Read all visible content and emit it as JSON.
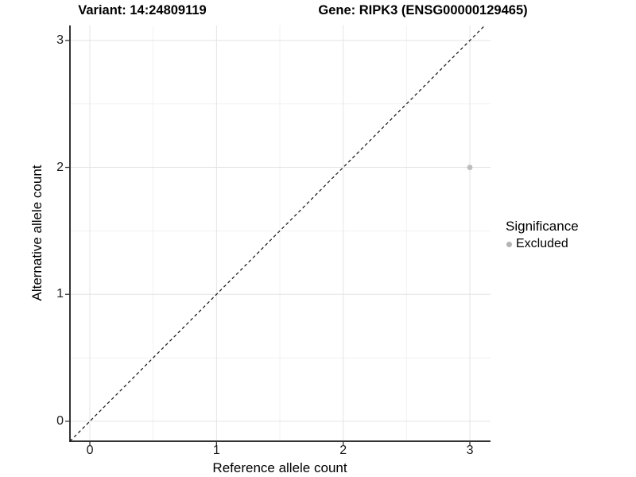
{
  "titles": {
    "variant": "Variant: 14:24809119",
    "gene": "Gene: RIPK3 (ENSG00000129465)"
  },
  "chart_data": {
    "type": "scatter",
    "title": "Variant: 14:24809119 / Gene: RIPK3 (ENSG00000129465)",
    "xlabel": "Reference allele count",
    "ylabel": "Alternative allele count",
    "x_ticks": [
      0,
      1,
      2,
      3
    ],
    "y_ticks": [
      0,
      1,
      2,
      3
    ],
    "xlim": [
      -0.157,
      3.163
    ],
    "ylim": [
      -0.157,
      3.118
    ],
    "grid": "major+minor",
    "identity_line": {
      "slope": 1,
      "intercept": 0,
      "style": "dashed",
      "color": "#111111"
    },
    "points": [
      {
        "x": 3,
        "y": 2,
        "series": "Excluded"
      }
    ],
    "series_colors": {
      "Excluded": "#bdbdbd"
    },
    "legend_position": "right"
  },
  "legend": {
    "title": "Significance",
    "items": [
      {
        "label": "Excluded",
        "color": "#b3b3b3"
      }
    ]
  },
  "colors": {
    "background": "#ffffff",
    "axis_line": "#333333",
    "tick_mark": "#333333",
    "tick_text": "#1a1a1a",
    "grid_major": "#e4e4e4",
    "grid_minor": "#f1f1f1",
    "point": "#bdbdbd"
  }
}
